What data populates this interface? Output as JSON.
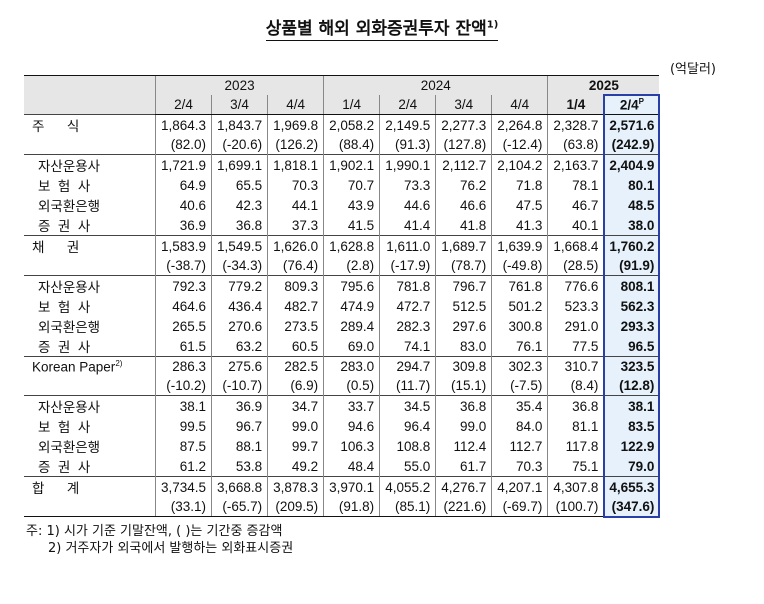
{
  "title": "상품별 해외 외화증권투자 잔액",
  "title_sup": "1)",
  "unit": "(억달러)",
  "years": [
    "2023",
    "2024",
    "2025"
  ],
  "quarters": [
    "2/4",
    "3/4",
    "4/4",
    "1/4",
    "2/4",
    "3/4",
    "4/4",
    "1/4",
    "2/4"
  ],
  "current_sup": "P",
  "rows": [
    {
      "label": "주      식",
      "vals": [
        "1,864.3",
        "1,843.7",
        "1,969.8",
        "2,058.2",
        "2,149.5",
        "2,277.3",
        "2,264.8",
        "2,328.7",
        "2,571.6"
      ],
      "type": "main"
    },
    {
      "label": "",
      "vals": [
        "(82.0)",
        "(-20.6)",
        "(126.2)",
        "(88.4)",
        "(91.3)",
        "(127.8)",
        "(-12.4)",
        "(63.8)",
        "(242.9)"
      ],
      "type": "chg"
    },
    {
      "label": "자산운용사",
      "vals": [
        "1,721.9",
        "1,699.1",
        "1,818.1",
        "1,902.1",
        "1,990.1",
        "2,112.7",
        "2,104.2",
        "2,163.7",
        "2,404.9"
      ],
      "type": "subfirst"
    },
    {
      "label": "보  험  사",
      "vals": [
        "64.9",
        "65.5",
        "70.3",
        "70.7",
        "73.3",
        "76.2",
        "71.8",
        "78.1",
        "80.1"
      ],
      "type": "sub"
    },
    {
      "label": "외국환은행",
      "vals": [
        "40.6",
        "42.3",
        "44.1",
        "43.9",
        "44.6",
        "46.6",
        "47.5",
        "46.7",
        "48.5"
      ],
      "type": "sub"
    },
    {
      "label": "증  권  사",
      "vals": [
        "36.9",
        "36.8",
        "37.3",
        "41.5",
        "41.4",
        "41.8",
        "41.3",
        "40.1",
        "38.0"
      ],
      "type": "sub"
    },
    {
      "label": "채      권",
      "vals": [
        "1,583.9",
        "1,549.5",
        "1,626.0",
        "1,628.8",
        "1,611.0",
        "1,689.7",
        "1,639.9",
        "1,668.4",
        "1,760.2"
      ],
      "type": "main"
    },
    {
      "label": "",
      "vals": [
        "(-38.7)",
        "(-34.3)",
        "(76.4)",
        "(2.8)",
        "(-17.9)",
        "(78.7)",
        "(-49.8)",
        "(28.5)",
        "(91.9)"
      ],
      "type": "chg"
    },
    {
      "label": "자산운용사",
      "vals": [
        "792.3",
        "779.2",
        "809.3",
        "795.6",
        "781.8",
        "796.7",
        "761.8",
        "776.6",
        "808.1"
      ],
      "type": "subfirst"
    },
    {
      "label": "보  험  사",
      "vals": [
        "464.6",
        "436.4",
        "482.7",
        "474.9",
        "472.7",
        "512.5",
        "501.2",
        "523.3",
        "562.3"
      ],
      "type": "sub"
    },
    {
      "label": "외국환은행",
      "vals": [
        "265.5",
        "270.6",
        "273.5",
        "289.4",
        "282.3",
        "297.6",
        "300.8",
        "291.0",
        "293.3"
      ],
      "type": "sub"
    },
    {
      "label": "증  권  사",
      "vals": [
        "61.5",
        "63.2",
        "60.5",
        "69.0",
        "74.1",
        "83.0",
        "76.1",
        "77.5",
        "96.5"
      ],
      "type": "sub"
    },
    {
      "label": "Korean Paper",
      "label_sup": "2)",
      "vals": [
        "286.3",
        "275.6",
        "282.5",
        "283.0",
        "294.7",
        "309.8",
        "302.3",
        "310.7",
        "323.5"
      ],
      "type": "main"
    },
    {
      "label": "",
      "vals": [
        "(-10.2)",
        "(-10.7)",
        "(6.9)",
        "(0.5)",
        "(11.7)",
        "(15.1)",
        "(-7.5)",
        "(8.4)",
        "(12.8)"
      ],
      "type": "chg"
    },
    {
      "label": "자산운용사",
      "vals": [
        "38.1",
        "36.9",
        "34.7",
        "33.7",
        "34.5",
        "36.8",
        "35.4",
        "36.8",
        "38.1"
      ],
      "type": "subfirst"
    },
    {
      "label": "보  험  사",
      "vals": [
        "99.5",
        "96.7",
        "99.0",
        "94.6",
        "96.4",
        "99.0",
        "84.0",
        "81.1",
        "83.5"
      ],
      "type": "sub"
    },
    {
      "label": "외국환은행",
      "vals": [
        "87.5",
        "88.1",
        "99.7",
        "106.3",
        "108.8",
        "112.4",
        "112.7",
        "117.8",
        "122.9"
      ],
      "type": "sub"
    },
    {
      "label": "증  권  사",
      "vals": [
        "61.2",
        "53.8",
        "49.2",
        "48.4",
        "55.0",
        "61.7",
        "70.3",
        "75.1",
        "79.0"
      ],
      "type": "sub"
    },
    {
      "label": "합      계",
      "vals": [
        "3,734.5",
        "3,668.8",
        "3,878.3",
        "3,970.1",
        "4,055.2",
        "4,276.7",
        "4,207.1",
        "4,307.8",
        "4,655.3"
      ],
      "type": "main"
    },
    {
      "label": "",
      "vals": [
        "(33.1)",
        "(-65.7)",
        "(209.5)",
        "(91.8)",
        "(85.1)",
        "(221.6)",
        "(-69.7)",
        "(100.7)",
        "(347.6)"
      ],
      "type": "chg"
    }
  ],
  "notes": [
    "주: 1) 시가 기준 기말잔액, (      )는 기간중 증감액",
    "2) 거주자가 외국에서 발행하는 외화표시증권"
  ]
}
